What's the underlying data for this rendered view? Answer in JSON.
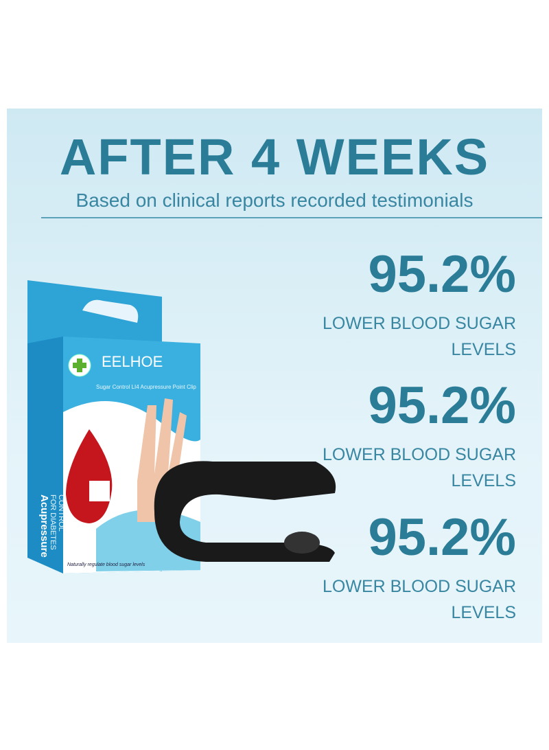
{
  "header": {
    "title": "AFTER 4 WEEKS",
    "subtitle": "Based on clinical reports recorded testimonials"
  },
  "stats": [
    {
      "value": "95.2%",
      "label": "LOWER BLOOD SUGAR LEVELS"
    },
    {
      "value": "95.2%",
      "label": "LOWER BLOOD SUGAR LEVELS"
    },
    {
      "value": "95.2%",
      "label": "LOWER BLOOD SUGAR LEVELS"
    }
  ],
  "product": {
    "brand": "EELHOE",
    "subtitle": "Sugar Control  LI4 Acupressure Point Clip",
    "side_title": "Acupressure",
    "side_line1": "FOR DIABETES",
    "side_line2": "CONTROL",
    "tagline": "Naturally regulate blood sugar levels"
  }
}
